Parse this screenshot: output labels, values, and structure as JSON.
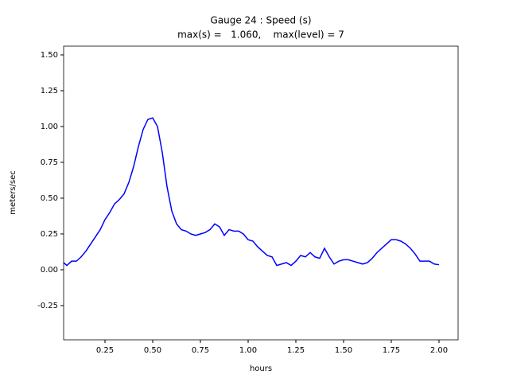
{
  "chart_data": {
    "type": "line",
    "title": "Gauge 24 : Speed (s)",
    "subtitle": "max(s) =   1.060,    max(level) = 7",
    "xlabel": "hours",
    "ylabel": "meters/sec",
    "xlim": [
      0.0333,
      2.1
    ],
    "ylim": [
      -0.489,
      1.561
    ],
    "xticks": [
      0.25,
      {
        "value": 0.5,
        "label": "0.50"
      },
      0.75,
      {
        "value": 1,
        "label": "1.00"
      },
      1.25,
      {
        "value": 1.5,
        "label": "1.50"
      },
      1.75,
      {
        "value": 2,
        "label": "2.00"
      }
    ],
    "yticks": [
      -0.25,
      {
        "value": 0,
        "label": "0.00"
      },
      0.25,
      {
        "value": 0.5,
        "label": "0.50"
      },
      0.75,
      {
        "value": 1,
        "label": "1.00"
      },
      1.25,
      {
        "value": 1.5,
        "label": "1.50"
      }
    ],
    "grid": false,
    "x": [
      0.033,
      0.05,
      0.075,
      0.1,
      0.125,
      0.15,
      0.175,
      0.2,
      0.225,
      0.25,
      0.275,
      0.3,
      0.325,
      0.35,
      0.375,
      0.4,
      0.425,
      0.45,
      0.475,
      0.5,
      0.525,
      0.55,
      0.575,
      0.6,
      0.625,
      0.65,
      0.675,
      0.7,
      0.725,
      0.75,
      0.775,
      0.8,
      0.825,
      0.85,
      0.875,
      0.9,
      0.925,
      0.95,
      0.975,
      1.0,
      1.025,
      1.05,
      1.075,
      1.1,
      1.125,
      1.15,
      1.175,
      1.2,
      1.225,
      1.25,
      1.275,
      1.3,
      1.325,
      1.35,
      1.375,
      1.4,
      1.425,
      1.45,
      1.475,
      1.5,
      1.525,
      1.55,
      1.575,
      1.6,
      1.625,
      1.65,
      1.675,
      1.7,
      1.725,
      1.75,
      1.775,
      1.8,
      1.825,
      1.85,
      1.875,
      1.9,
      1.925,
      1.95,
      1.975,
      2.0
    ],
    "series": [
      {
        "name": "speed",
        "color": "#0000ff",
        "values": [
          0.05,
          0.03,
          0.06,
          0.06,
          0.09,
          0.13,
          0.18,
          0.23,
          0.28,
          0.35,
          0.4,
          0.46,
          0.49,
          0.53,
          0.61,
          0.72,
          0.86,
          0.98,
          1.05,
          1.06,
          1.0,
          0.82,
          0.58,
          0.41,
          0.32,
          0.28,
          0.27,
          0.25,
          0.24,
          0.25,
          0.26,
          0.28,
          0.32,
          0.3,
          0.24,
          0.28,
          0.27,
          0.27,
          0.25,
          0.21,
          0.2,
          0.16,
          0.13,
          0.1,
          0.09,
          0.03,
          0.04,
          0.05,
          0.03,
          0.06,
          0.1,
          0.09,
          0.12,
          0.09,
          0.08,
          0.15,
          0.09,
          0.04,
          0.06,
          0.07,
          0.07,
          0.06,
          0.05,
          0.04,
          0.05,
          0.08,
          0.12,
          0.15,
          0.18,
          0.21,
          0.21,
          0.2,
          0.18,
          0.15,
          0.11,
          0.06,
          0.06,
          0.06,
          0.04,
          0.035
        ]
      }
    ]
  }
}
